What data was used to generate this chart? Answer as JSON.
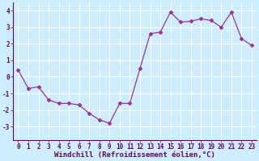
{
  "x": [
    0,
    1,
    2,
    3,
    4,
    5,
    6,
    7,
    8,
    9,
    10,
    11,
    12,
    13,
    14,
    15,
    16,
    17,
    18,
    19,
    20,
    21,
    22,
    23
  ],
  "y": [
    0.4,
    -0.7,
    -0.6,
    -1.4,
    -1.6,
    -1.6,
    -1.7,
    -2.2,
    -2.6,
    -2.8,
    -1.6,
    -1.6,
    0.5,
    2.6,
    2.7,
    3.9,
    3.3,
    3.35,
    3.5,
    3.4,
    3.0,
    3.9,
    2.3,
    1.9
  ],
  "line_color": "#993399",
  "marker": "D",
  "marker_size": 2.5,
  "bg_color": "#cceeff",
  "grid_color": "#ffffff",
  "xlabel": "Windchill (Refroidissement éolien,°C)",
  "ylim": [
    -3.8,
    4.5
  ],
  "xlim": [
    -0.5,
    23.5
  ],
  "yticks": [
    -3,
    -2,
    -1,
    0,
    1,
    2,
    3,
    4
  ],
  "xticks": [
    0,
    1,
    2,
    3,
    4,
    5,
    6,
    7,
    8,
    9,
    10,
    11,
    12,
    13,
    14,
    15,
    16,
    17,
    18,
    19,
    20,
    21,
    22,
    23
  ],
  "tick_label_size": 5.5,
  "xlabel_size": 6.5
}
